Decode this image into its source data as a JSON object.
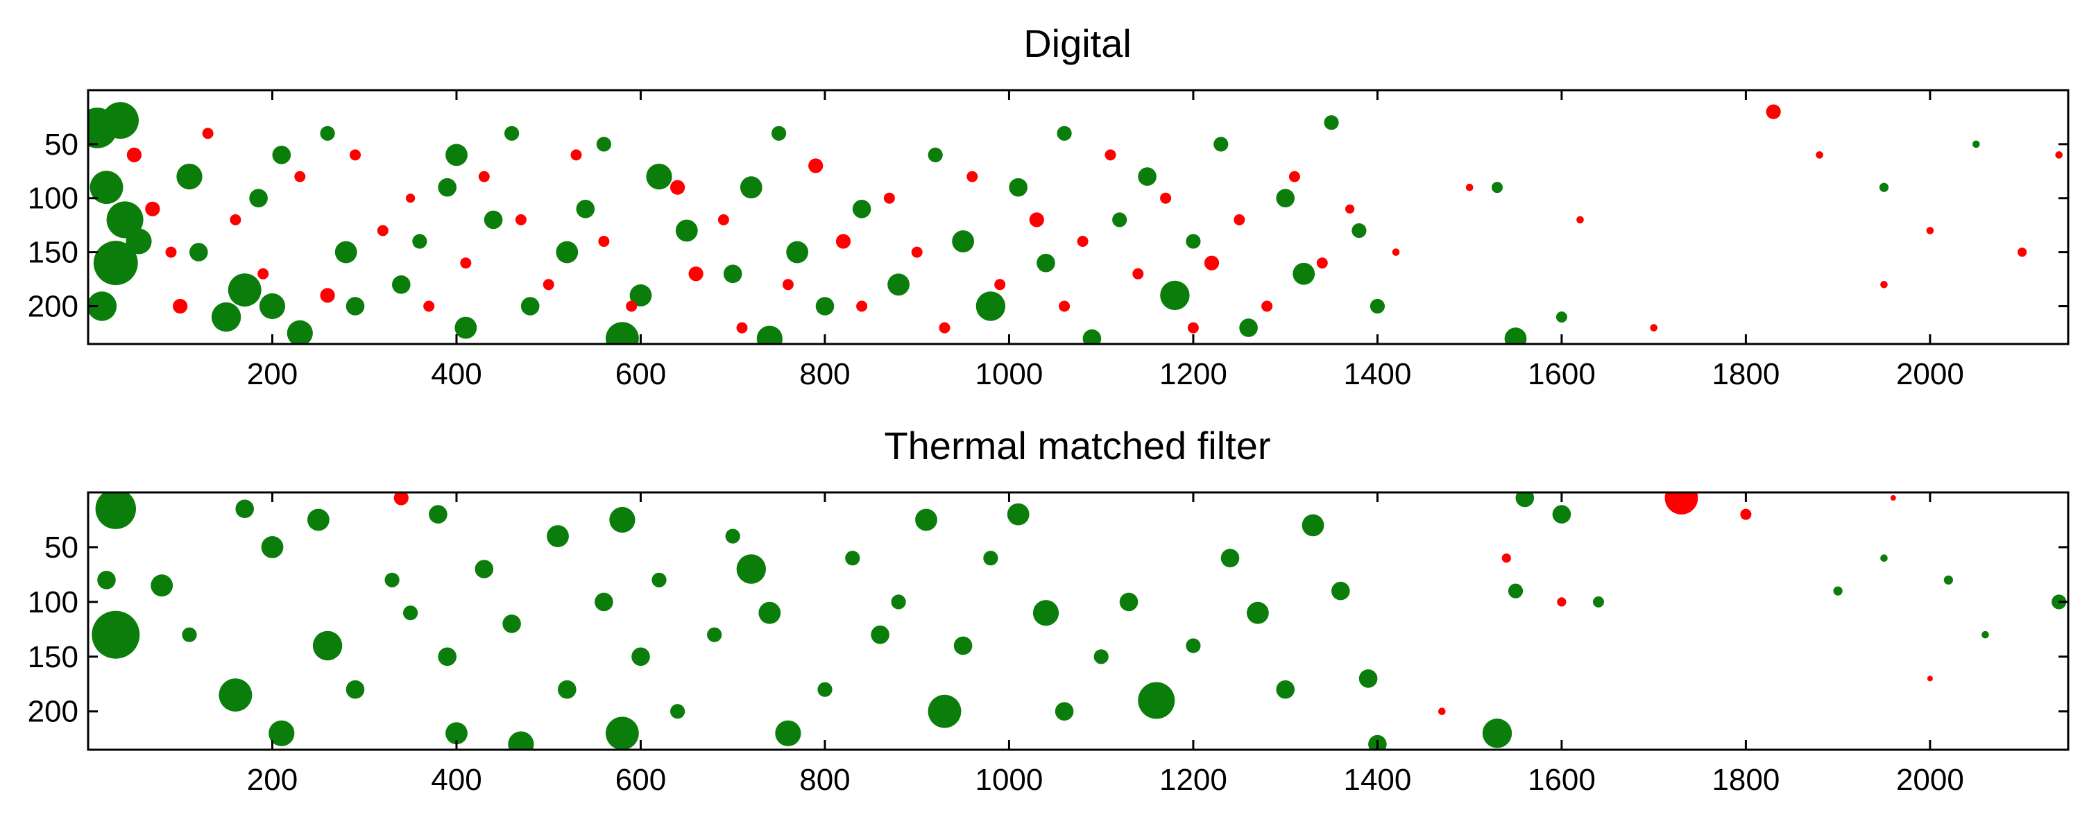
{
  "colors": {
    "green": "#0a7d0a",
    "red": "#ff0000",
    "axis": "#000000",
    "background": "#ffffff"
  },
  "chart_data": [
    {
      "type": "scatter",
      "title": "Digital",
      "xlabel": "",
      "ylabel": "",
      "xlim": [
        0,
        2150
      ],
      "ylim": [
        0,
        235
      ],
      "y_reversed": true,
      "grid": false,
      "xticks": [
        200,
        400,
        600,
        800,
        1000,
        1200,
        1400,
        1600,
        1800,
        2000
      ],
      "yticks": [
        50,
        100,
        150,
        200
      ],
      "series": [
        {
          "color": "green",
          "points": [
            [
              10,
              35,
              22
            ],
            [
              35,
              28,
              20
            ],
            [
              20,
              90,
              18
            ],
            [
              40,
              120,
              20
            ],
            [
              30,
              160,
              24
            ],
            [
              15,
              200,
              16
            ],
            [
              55,
              140,
              14
            ],
            [
              110,
              80,
              14
            ],
            [
              120,
              150,
              10
            ],
            [
              150,
              210,
              16
            ],
            [
              170,
              185,
              18
            ],
            [
              200,
              200,
              14
            ],
            [
              230,
              225,
              14
            ],
            [
              185,
              100,
              10
            ],
            [
              210,
              60,
              10
            ],
            [
              260,
              40,
              8
            ],
            [
              280,
              150,
              12
            ],
            [
              290,
              200,
              10
            ],
            [
              340,
              180,
              10
            ],
            [
              360,
              140,
              8
            ],
            [
              390,
              90,
              10
            ],
            [
              400,
              60,
              12
            ],
            [
              440,
              120,
              10
            ],
            [
              460,
              40,
              8
            ],
            [
              410,
              220,
              12
            ],
            [
              480,
              200,
              10
            ],
            [
              520,
              150,
              12
            ],
            [
              540,
              110,
              10
            ],
            [
              560,
              50,
              8
            ],
            [
              580,
              230,
              18
            ],
            [
              600,
              190,
              12
            ],
            [
              620,
              80,
              14
            ],
            [
              650,
              130,
              12
            ],
            [
              700,
              170,
              10
            ],
            [
              720,
              90,
              12
            ],
            [
              750,
              40,
              8
            ],
            [
              770,
              150,
              12
            ],
            [
              740,
              230,
              14
            ],
            [
              800,
              200,
              10
            ],
            [
              840,
              110,
              10
            ],
            [
              880,
              180,
              12
            ],
            [
              920,
              60,
              8
            ],
            [
              950,
              140,
              12
            ],
            [
              980,
              200,
              16
            ],
            [
              1010,
              90,
              10
            ],
            [
              1040,
              160,
              10
            ],
            [
              1060,
              40,
              8
            ],
            [
              1090,
              230,
              10
            ],
            [
              1120,
              120,
              8
            ],
            [
              1150,
              80,
              10
            ],
            [
              1180,
              190,
              16
            ],
            [
              1200,
              140,
              8
            ],
            [
              1230,
              50,
              8
            ],
            [
              1260,
              220,
              10
            ],
            [
              1300,
              100,
              10
            ],
            [
              1320,
              170,
              12
            ],
            [
              1350,
              30,
              8
            ],
            [
              1380,
              130,
              8
            ],
            [
              1400,
              200,
              8
            ],
            [
              1530,
              90,
              6
            ],
            [
              1550,
              230,
              12
            ],
            [
              1600,
              210,
              6
            ],
            [
              1950,
              90,
              5
            ],
            [
              2050,
              50,
              4
            ]
          ]
        },
        {
          "color": "red",
          "points": [
            [
              50,
              60,
              8
            ],
            [
              70,
              110,
              8
            ],
            [
              90,
              150,
              6
            ],
            [
              100,
              200,
              8
            ],
            [
              130,
              40,
              6
            ],
            [
              160,
              120,
              6
            ],
            [
              190,
              170,
              6
            ],
            [
              230,
              80,
              6
            ],
            [
              260,
              190,
              8
            ],
            [
              290,
              60,
              6
            ],
            [
              320,
              130,
              6
            ],
            [
              350,
              100,
              5
            ],
            [
              370,
              200,
              6
            ],
            [
              410,
              160,
              6
            ],
            [
              430,
              80,
              6
            ],
            [
              470,
              120,
              6
            ],
            [
              500,
              180,
              6
            ],
            [
              530,
              60,
              6
            ],
            [
              560,
              140,
              6
            ],
            [
              590,
              200,
              6
            ],
            [
              640,
              90,
              8
            ],
            [
              660,
              170,
              8
            ],
            [
              690,
              120,
              6
            ],
            [
              710,
              220,
              6
            ],
            [
              760,
              180,
              6
            ],
            [
              790,
              70,
              8
            ],
            [
              820,
              140,
              8
            ],
            [
              840,
              200,
              6
            ],
            [
              870,
              100,
              6
            ],
            [
              900,
              150,
              6
            ],
            [
              930,
              220,
              6
            ],
            [
              960,
              80,
              6
            ],
            [
              990,
              180,
              6
            ],
            [
              1030,
              120,
              8
            ],
            [
              1060,
              200,
              6
            ],
            [
              1080,
              140,
              6
            ],
            [
              1110,
              60,
              6
            ],
            [
              1140,
              170,
              6
            ],
            [
              1170,
              100,
              6
            ],
            [
              1200,
              220,
              6
            ],
            [
              1220,
              160,
              8
            ],
            [
              1250,
              120,
              6
            ],
            [
              1280,
              200,
              6
            ],
            [
              1310,
              80,
              6
            ],
            [
              1340,
              160,
              6
            ],
            [
              1370,
              110,
              5
            ],
            [
              1420,
              150,
              4
            ],
            [
              1500,
              90,
              4
            ],
            [
              1620,
              120,
              4
            ],
            [
              1700,
              220,
              4
            ],
            [
              1830,
              20,
              8
            ],
            [
              1880,
              60,
              4
            ],
            [
              1950,
              180,
              4
            ],
            [
              2000,
              130,
              4
            ],
            [
              2100,
              150,
              5
            ],
            [
              2140,
              60,
              4
            ]
          ]
        }
      ]
    },
    {
      "type": "scatter",
      "title": "Thermal matched filter",
      "xlabel": "",
      "ylabel": "",
      "xlim": [
        0,
        2150
      ],
      "ylim": [
        0,
        235
      ],
      "y_reversed": true,
      "grid": false,
      "xticks": [
        200,
        400,
        600,
        800,
        1000,
        1200,
        1400,
        1600,
        1800,
        2000
      ],
      "yticks": [
        50,
        100,
        150,
        200
      ],
      "series": [
        {
          "color": "green",
          "points": [
            [
              30,
              15,
              22
            ],
            [
              30,
              130,
              26
            ],
            [
              20,
              80,
              10
            ],
            [
              80,
              85,
              12
            ],
            [
              110,
              130,
              8
            ],
            [
              160,
              185,
              18
            ],
            [
              170,
              15,
              10
            ],
            [
              200,
              50,
              12
            ],
            [
              210,
              220,
              14
            ],
            [
              250,
              25,
              12
            ],
            [
              260,
              140,
              16
            ],
            [
              290,
              180,
              10
            ],
            [
              330,
              80,
              8
            ],
            [
              350,
              110,
              8
            ],
            [
              380,
              20,
              10
            ],
            [
              390,
              150,
              10
            ],
            [
              400,
              220,
              12
            ],
            [
              430,
              70,
              10
            ],
            [
              460,
              120,
              10
            ],
            [
              470,
              230,
              14
            ],
            [
              510,
              40,
              12
            ],
            [
              520,
              180,
              10
            ],
            [
              560,
              100,
              10
            ],
            [
              580,
              25,
              14
            ],
            [
              580,
              220,
              18
            ],
            [
              600,
              150,
              10
            ],
            [
              620,
              80,
              8
            ],
            [
              640,
              200,
              8
            ],
            [
              680,
              130,
              8
            ],
            [
              700,
              40,
              8
            ],
            [
              720,
              70,
              16
            ],
            [
              740,
              110,
              12
            ],
            [
              760,
              220,
              14
            ],
            [
              800,
              180,
              8
            ],
            [
              830,
              60,
              8
            ],
            [
              860,
              130,
              10
            ],
            [
              880,
              100,
              8
            ],
            [
              910,
              25,
              12
            ],
            [
              930,
              200,
              18
            ],
            [
              950,
              140,
              10
            ],
            [
              980,
              60,
              8
            ],
            [
              1010,
              20,
              12
            ],
            [
              1040,
              110,
              14
            ],
            [
              1060,
              200,
              10
            ],
            [
              1100,
              150,
              8
            ],
            [
              1130,
              100,
              10
            ],
            [
              1160,
              190,
              20
            ],
            [
              1200,
              140,
              8
            ],
            [
              1240,
              60,
              10
            ],
            [
              1270,
              110,
              12
            ],
            [
              1300,
              180,
              10
            ],
            [
              1330,
              30,
              12
            ],
            [
              1360,
              90,
              10
            ],
            [
              1390,
              170,
              10
            ],
            [
              1400,
              230,
              10
            ],
            [
              1530,
              220,
              16
            ],
            [
              1550,
              90,
              8
            ],
            [
              1600,
              20,
              10
            ],
            [
              1640,
              100,
              6
            ],
            [
              1900,
              90,
              5
            ],
            [
              1950,
              60,
              4
            ],
            [
              2020,
              80,
              5
            ],
            [
              2060,
              130,
              4
            ],
            [
              2140,
              100,
              8
            ],
            [
              1560,
              5,
              10
            ]
          ]
        },
        {
          "color": "red",
          "points": [
            [
              340,
              5,
              8
            ],
            [
              1730,
              5,
              18
            ],
            [
              1800,
              20,
              6
            ],
            [
              1540,
              60,
              5
            ],
            [
              1600,
              100,
              5
            ],
            [
              1470,
              200,
              4
            ],
            [
              1960,
              5,
              3
            ],
            [
              2000,
              170,
              3
            ]
          ]
        }
      ]
    }
  ]
}
